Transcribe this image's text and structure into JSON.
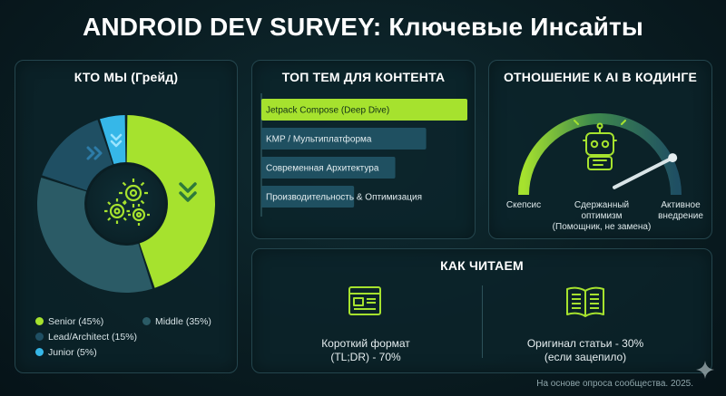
{
  "title": "ANDROID DEV SURVEY: Ключевые Инсайты",
  "colors": {
    "senior": "#a6e22e",
    "middle": "#2b5b66",
    "lead": "#1f4f63",
    "junior": "#36b7e8",
    "accent": "#a6e22e",
    "bar": "#1f5061"
  },
  "chart_data": [
    {
      "type": "pie",
      "title": "КТО МЫ (Грейд)",
      "categories": [
        "Senior",
        "Middle",
        "Lead/Architect",
        "Junior"
      ],
      "values": [
        45,
        35,
        15,
        5
      ],
      "legend": [
        {
          "label": "Senior (45%)"
        },
        {
          "label": "Middle (35%)"
        },
        {
          "label": "Lead/Architect (15%)"
        },
        {
          "label": "Junior (5%)"
        }
      ]
    },
    {
      "type": "bar",
      "title": "ТОП ТЕМ ДЛЯ КОНТЕНТА",
      "categories": [
        "Jetpack Compose (Deep Dive)",
        "KMP / Мультиплатформа",
        "Современная Архитектура",
        "Производительность & Оптимизация"
      ],
      "values": [
        100,
        80,
        65,
        45
      ]
    }
  ],
  "ai_panel": {
    "title": "ОТНОШЕНИЕ К AI В КОДИНГЕ",
    "needle_position": 0.85,
    "labels": {
      "skeptic": "Скепсис",
      "moderate_1": "Сдержанный",
      "moderate_2": "оптимизм",
      "moderate_3": "(Помощник, не замена)",
      "active_1": "Активное",
      "active_2": "внедрение"
    }
  },
  "read_panel": {
    "title": "КАК ЧИТАЕМ",
    "short_1": "Короткий формат",
    "short_2": "(TL;DR) - 70%",
    "orig_1": "Оригинал статьи - 30%",
    "orig_2": "(если зацепило)"
  },
  "footnote": "На основе опроса сообщества. 2025."
}
